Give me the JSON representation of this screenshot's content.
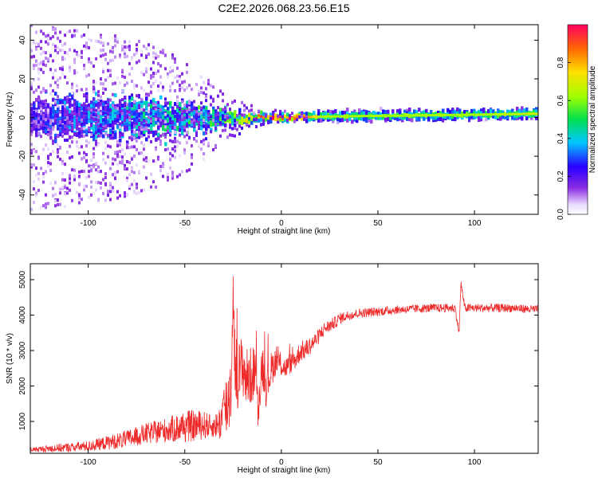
{
  "title": "C2E2.2026.068.23.56.E15",
  "colors": {
    "snr_line": "#ee2b2b",
    "axis": "#000000",
    "background": "#ffffff"
  },
  "chart_data": [
    {
      "type": "heatmap",
      "xlabel": "Height of straight line (km)",
      "ylabel": "Frequency (Hz)",
      "xlim": [
        -130,
        133
      ],
      "ylim": [
        -50,
        48
      ],
      "x_ticks": [
        -100,
        -50,
        0,
        50,
        100
      ],
      "y_ticks": [
        -40,
        -20,
        0,
        20,
        40
      ],
      "grid": false,
      "colorbar": {
        "label": "Normalized spectral amplitude",
        "range": [
          0.0,
          1.0
        ],
        "ticks": [
          0.0,
          0.2,
          0.4,
          0.6,
          0.8
        ],
        "colormap": "rainbow (violet to red)"
      },
      "band": [
        {
          "x": -130,
          "center_hz": 0,
          "half_width_hz": 8,
          "peak_amplitude": 0.25,
          "scatter_hz": 48
        },
        {
          "x": -100,
          "center_hz": 0,
          "half_width_hz": 9,
          "peak_amplitude": 0.35,
          "scatter_hz": 45
        },
        {
          "x": -75,
          "center_hz": 0,
          "half_width_hz": 9,
          "peak_amplitude": 0.4,
          "scatter_hz": 40
        },
        {
          "x": -50,
          "center_hz": 0,
          "half_width_hz": 7,
          "peak_amplitude": 0.45,
          "scatter_hz": 30
        },
        {
          "x": -30,
          "center_hz": 0,
          "half_width_hz": 4,
          "peak_amplitude": 0.5,
          "scatter_hz": 12
        },
        {
          "x": -15,
          "center_hz": 0,
          "half_width_hz": 2.5,
          "peak_amplitude": 0.75,
          "scatter_hz": 6
        },
        {
          "x": -5,
          "center_hz": 0,
          "half_width_hz": 2,
          "peak_amplitude": 0.95,
          "scatter_hz": 4
        },
        {
          "x": 5,
          "center_hz": 0,
          "half_width_hz": 2,
          "peak_amplitude": 1.0,
          "scatter_hz": 3
        },
        {
          "x": 20,
          "center_hz": 0.5,
          "half_width_hz": 2.5,
          "peak_amplitude": 0.55,
          "scatter_hz": 0
        },
        {
          "x": 60,
          "center_hz": 1,
          "half_width_hz": 2.5,
          "peak_amplitude": 0.55,
          "scatter_hz": 0
        },
        {
          "x": 100,
          "center_hz": 1.5,
          "half_width_hz": 2.5,
          "peak_amplitude": 0.55,
          "scatter_hz": 0
        },
        {
          "x": 133,
          "center_hz": 2,
          "half_width_hz": 2.5,
          "peak_amplitude": 0.6,
          "scatter_hz": 0
        }
      ]
    },
    {
      "type": "line",
      "xlabel": "Height of straight line (km)",
      "ylabel": "SNR (10 * v/v)",
      "xlim": [
        -130,
        133
      ],
      "ylim": [
        100,
        5450
      ],
      "x_ticks": [
        -100,
        -50,
        0,
        50,
        100
      ],
      "y_ticks": [
        1000,
        2000,
        3000,
        4000,
        5000
      ],
      "grid": false,
      "series": [
        {
          "x": [
            -130,
            -115,
            -100,
            -90,
            -80,
            -70,
            -60,
            -55,
            -50,
            -45,
            -40,
            -35,
            -32,
            -30,
            -28,
            -26,
            -25,
            -24,
            -22,
            -20,
            -18,
            -15,
            -13,
            -12,
            -10,
            -8,
            -5,
            -3,
            0,
            2,
            5,
            8,
            10,
            12,
            15,
            18,
            20,
            22,
            25,
            28,
            30,
            35,
            40,
            50,
            60,
            70,
            80,
            90,
            92,
            93,
            95,
            100,
            110,
            120,
            133
          ],
          "y": [
            200,
            250,
            300,
            400,
            500,
            650,
            750,
            800,
            850,
            880,
            900,
            850,
            950,
            1200,
            1500,
            2000,
            4800,
            2500,
            2300,
            2600,
            2200,
            2300,
            2600,
            1000,
            2700,
            2000,
            2500,
            2700,
            2600,
            2500,
            2650,
            2800,
            3000,
            3000,
            3150,
            3300,
            3450,
            3600,
            3700,
            3800,
            3900,
            4000,
            4050,
            4100,
            4150,
            4180,
            4200,
            4200,
            3500,
            4900,
            4200,
            4200,
            4200,
            4200,
            4150
          ],
          "noise": [
            60,
            120,
            150,
            200,
            250,
            300,
            350,
            400,
            450,
            450,
            400,
            300,
            500,
            900,
            1000,
            1200,
            500,
            1000,
            1000,
            900,
            900,
            800,
            700,
            300,
            700,
            600,
            500,
            400,
            350,
            300,
            300,
            300,
            300,
            280,
            250,
            230,
            220,
            200,
            180,
            170,
            160,
            140,
            130,
            130,
            120,
            120,
            120,
            120,
            100,
            100,
            120,
            120,
            120,
            120,
            120
          ]
        }
      ]
    }
  ]
}
